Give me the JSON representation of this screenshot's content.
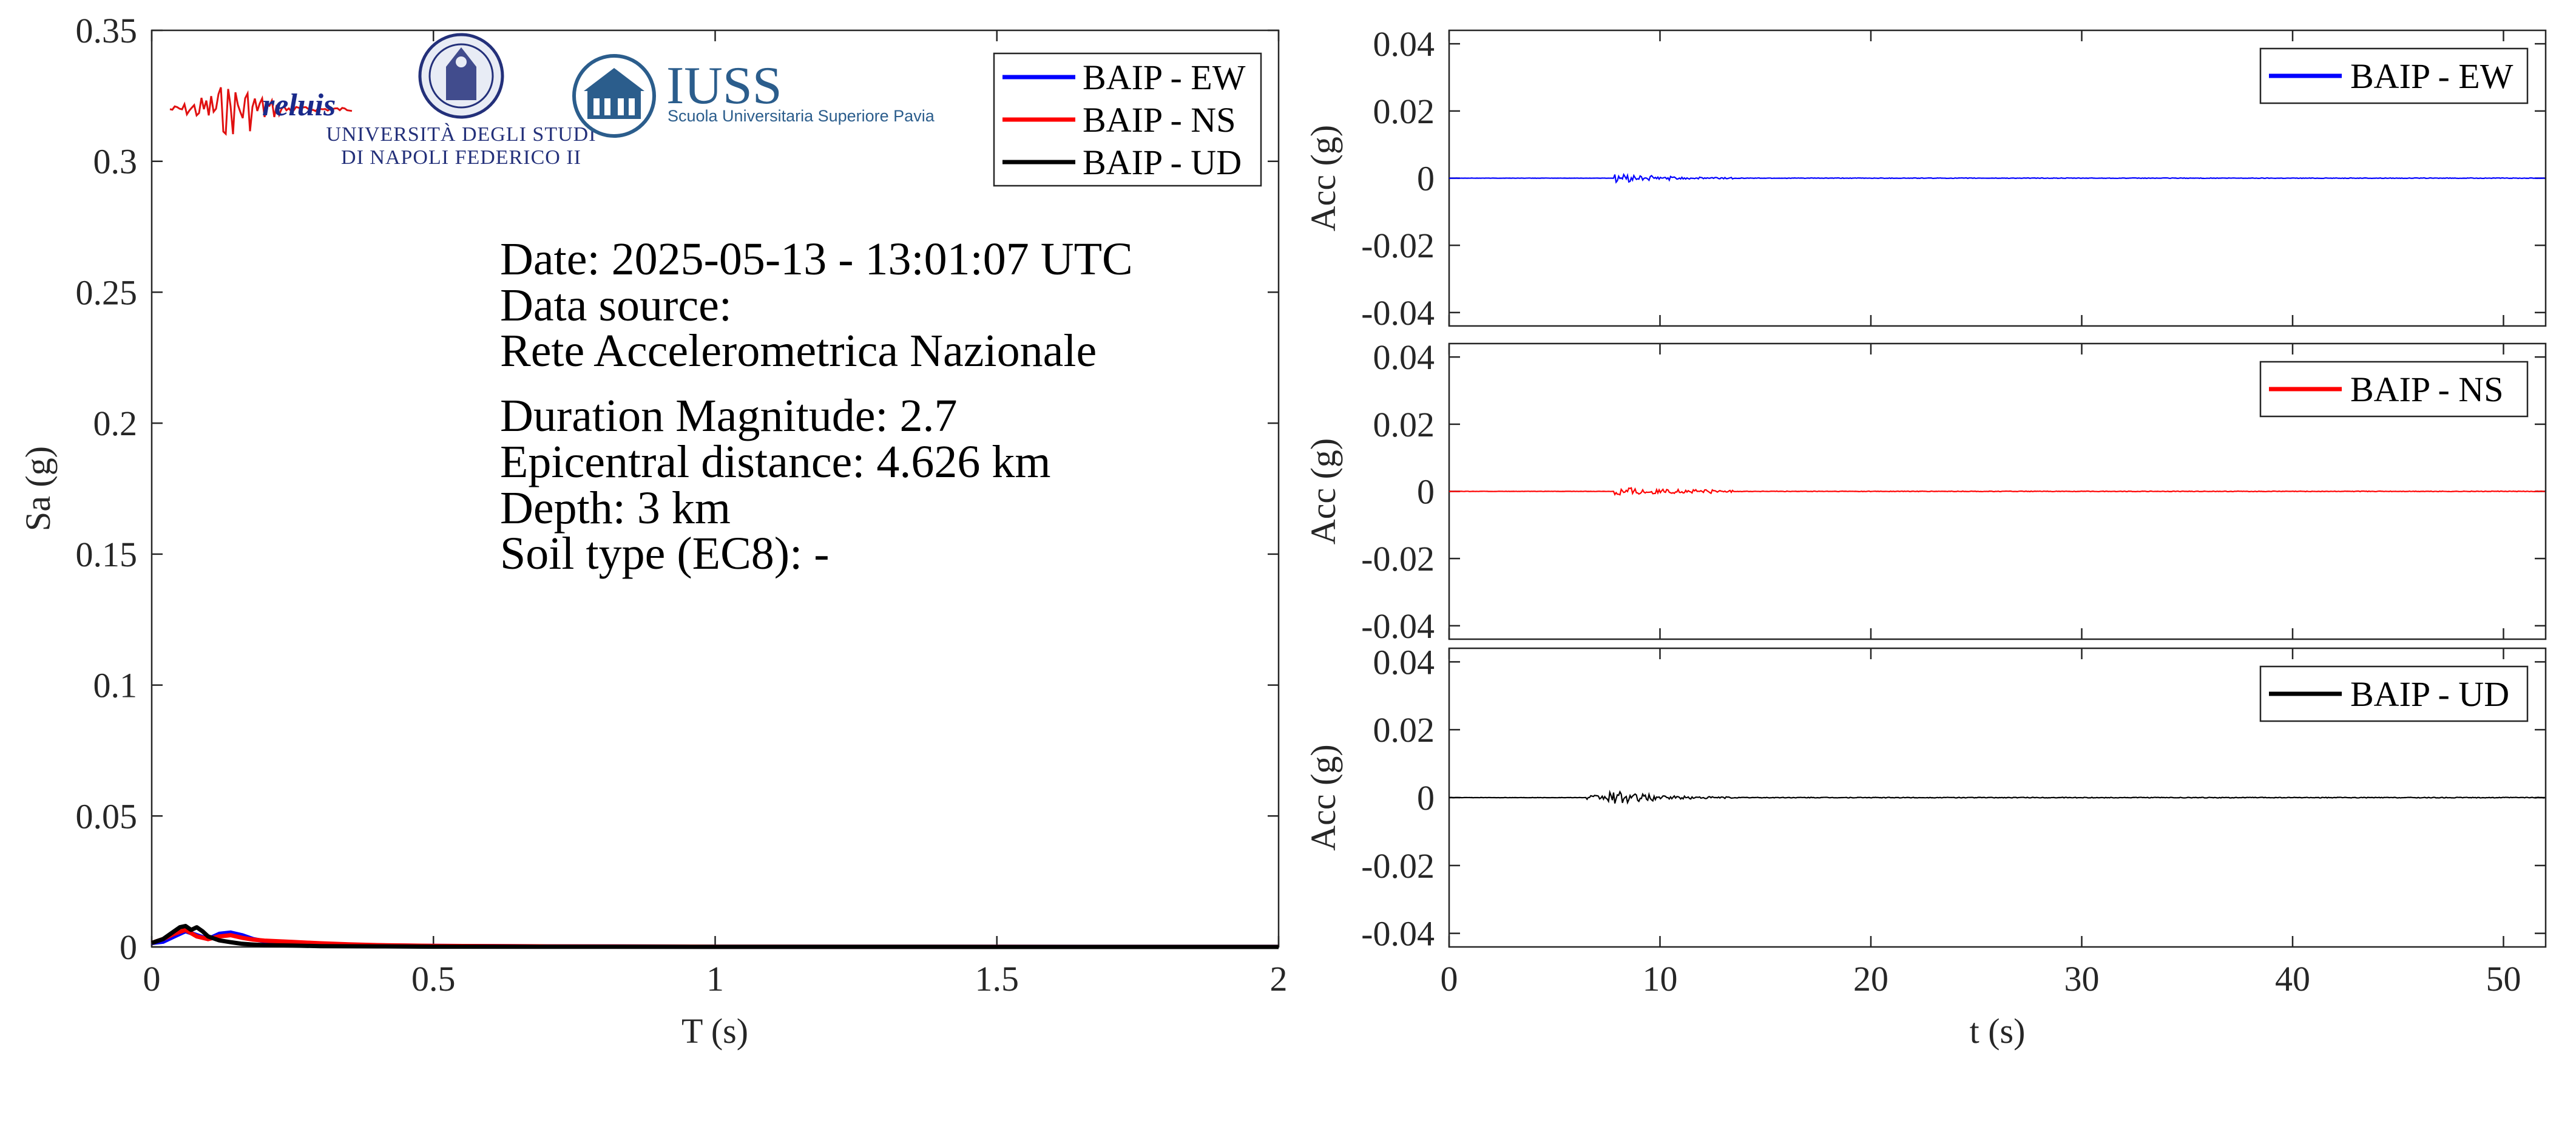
{
  "colors": {
    "ew": "#0000ff",
    "ns": "#ff0000",
    "ud": "#000000",
    "unina": "#23307a",
    "iuss": "#2b5d8c",
    "reluis_text": "#1a2a8a"
  },
  "logos": {
    "reluis": {
      "text": "reluis"
    },
    "unina": {
      "line1": "UNIVERSITÀ DEGLI STUDI",
      "line2": "DI NAPOLI FEDERICO II"
    },
    "iuss": {
      "title": "IUSS",
      "subtitle": "Scuola Universitaria Superiore Pavia"
    }
  },
  "info": {
    "date": "Date: 2025-05-13 - 13:01:07 UTC",
    "source_label": "Data source:",
    "source": "Rete Accelerometrica Nazionale",
    "magnitude": "Duration Magnitude: 2.7",
    "distance": "Epicentral distance: 4.626 km",
    "depth": "Depth: 3 km",
    "soil": "Soil type (EC8): -"
  },
  "chart_data": [
    {
      "type": "line",
      "xlabel": "T (s)",
      "ylabel": "Sa (g)",
      "xlim": [
        0,
        2
      ],
      "ylim": [
        0,
        0.35
      ],
      "xticks": [
        "0",
        "0.5",
        "1",
        "1.5",
        "2"
      ],
      "yticks": [
        "0",
        "0.05",
        "0.1",
        "0.15",
        "0.2",
        "0.25",
        "0.3",
        "0.35"
      ],
      "legend_position": "top-right",
      "series": [
        {
          "name": "BAIP - EW",
          "color": "#0000ff",
          "x": [
            0,
            0.02,
            0.04,
            0.06,
            0.08,
            0.1,
            0.12,
            0.14,
            0.16,
            0.18,
            0.2,
            0.25,
            0.3,
            0.35,
            0.4,
            0.5,
            0.7,
            1.0,
            1.5,
            2.0
          ],
          "y": [
            0.0015,
            0.002,
            0.004,
            0.006,
            0.0045,
            0.003,
            0.005,
            0.0055,
            0.0045,
            0.003,
            0.0022,
            0.0016,
            0.0012,
            0.0009,
            0.0006,
            0.0004,
            0.0002,
            0.0001,
            5e-05,
            2e-05
          ]
        },
        {
          "name": "BAIP - NS",
          "color": "#ff0000",
          "x": [
            0,
            0.02,
            0.04,
            0.06,
            0.08,
            0.1,
            0.12,
            0.14,
            0.16,
            0.18,
            0.2,
            0.25,
            0.3,
            0.35,
            0.4,
            0.5,
            0.7,
            1.0,
            1.5,
            2.0
          ],
          "y": [
            0.0015,
            0.003,
            0.005,
            0.0065,
            0.004,
            0.003,
            0.004,
            0.0045,
            0.0035,
            0.0028,
            0.0024,
            0.0019,
            0.0014,
            0.001,
            0.0007,
            0.0004,
            0.0002,
            0.0001,
            5e-05,
            2e-05
          ]
        },
        {
          "name": "BAIP - UD",
          "color": "#000000",
          "x": [
            0,
            0.02,
            0.04,
            0.05,
            0.06,
            0.07,
            0.08,
            0.09,
            0.1,
            0.12,
            0.14,
            0.16,
            0.18,
            0.2,
            0.25,
            0.3,
            0.4,
            0.5,
            1.0,
            2.0
          ],
          "y": [
            0.0015,
            0.003,
            0.006,
            0.0075,
            0.008,
            0.0065,
            0.0075,
            0.006,
            0.004,
            0.0025,
            0.0018,
            0.0012,
            0.0009,
            0.0007,
            0.0005,
            0.0003,
            0.0002,
            0.0001,
            3e-05,
            1e-05
          ]
        }
      ]
    },
    {
      "type": "line",
      "ylabel": "Acc (g)",
      "xlim": [
        0,
        52
      ],
      "ylim": [
        -0.044,
        0.044
      ],
      "yticks": [
        "-0.04",
        "-0.02",
        "0",
        "0.02",
        "0.04"
      ],
      "legend_position": "top-right",
      "series": [
        {
          "name": "BAIP - EW",
          "color": "#0000ff",
          "bursts": [
            [
              7.8,
              8.6,
              0.0013
            ],
            [
              8.6,
              9.6,
              0.0008
            ],
            [
              9.6,
              10.3,
              0.0004
            ],
            [
              10.3,
              10.9,
              0.0006
            ],
            [
              10.9,
              13.5,
              0.0003
            ],
            [
              13.5,
              52,
              8e-05
            ]
          ]
        }
      ]
    },
    {
      "type": "line",
      "ylabel": "Acc (g)",
      "xlim": [
        0,
        52
      ],
      "ylim": [
        -0.044,
        0.044
      ],
      "yticks": [
        "-0.04",
        "-0.02",
        "0",
        "0.02",
        "0.04"
      ],
      "legend_position": "top-right",
      "series": [
        {
          "name": "BAIP - NS",
          "color": "#ff0000",
          "bursts": [
            [
              7.8,
              8.8,
              0.0015
            ],
            [
              8.8,
              9.8,
              0.0009
            ],
            [
              9.8,
              12.5,
              0.0006
            ],
            [
              12.5,
              13.5,
              0.0003
            ],
            [
              13.5,
              52,
              8e-05
            ]
          ]
        }
      ]
    },
    {
      "type": "line",
      "xlabel": "t (s)",
      "ylabel": "Acc (g)",
      "xlim": [
        0,
        52
      ],
      "ylim": [
        -0.044,
        0.044
      ],
      "xticks": [
        "0",
        "10",
        "20",
        "30",
        "40",
        "50"
      ],
      "yticks": [
        "-0.04",
        "-0.02",
        "0",
        "0.02",
        "0.04"
      ],
      "legend_position": "top-right",
      "series": [
        {
          "name": "BAIP - UD",
          "color": "#000000",
          "bursts": [
            [
              6.5,
              7.5,
              0.0007
            ],
            [
              7.5,
              8.8,
              0.0018
            ],
            [
              8.8,
              9.8,
              0.0011
            ],
            [
              9.8,
              11.5,
              0.0005
            ],
            [
              11.5,
              13.5,
              0.0003
            ],
            [
              13.5,
              52,
              0.0001
            ]
          ]
        }
      ]
    }
  ]
}
